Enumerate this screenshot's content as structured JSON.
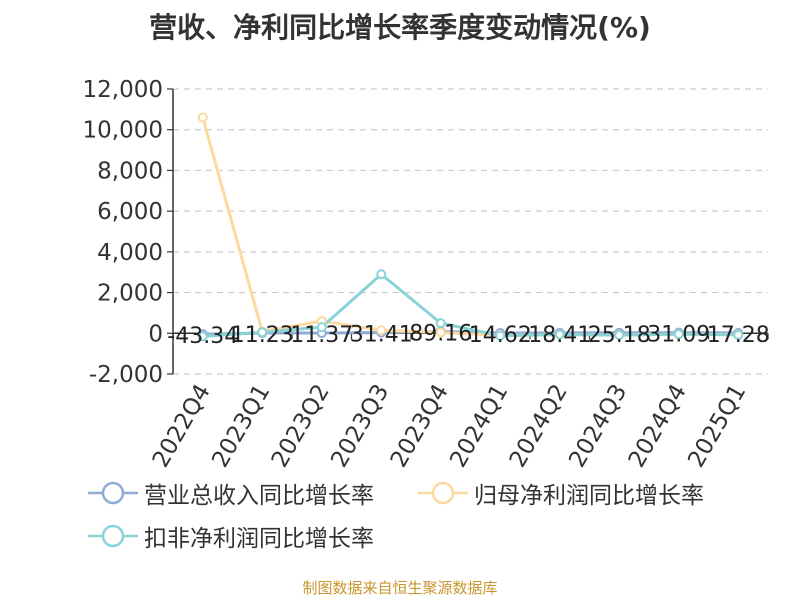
{
  "chart_data": {
    "type": "line",
    "title": "营收、净利同比增长率季度变动情况(%)",
    "categories": [
      "2022Q4",
      "2023Q1",
      "2023Q2",
      "2023Q3",
      "2023Q4",
      "2024Q1",
      "2024Q2",
      "2024Q3",
      "2024Q4",
      "2025Q1"
    ],
    "ylim": [
      -2000,
      12000
    ],
    "yticks": [
      "12,000",
      "10,000",
      "8,000",
      "6,000",
      "4,000",
      "2,000",
      "0",
      "-2,000"
    ],
    "grid": true,
    "legend_position": "bottom",
    "series": [
      {
        "name": "营业总收入同比增长率",
        "color": "#91acd4",
        "values": [
          -43.34,
          11.23,
          11.37,
          31.41,
          89.16,
          14.62,
          18.41,
          25.18,
          31.09,
          17.28
        ],
        "labels": [
          "-43.34",
          "11.23",
          "11.37",
          "31.41",
          "89.16",
          "14.62",
          "18.41",
          "25.18",
          "31.09",
          "17.28"
        ]
      },
      {
        "name": "归母净利润同比增长率",
        "color": "#fcd9a0",
        "values": [
          10600,
          80,
          600,
          150,
          40,
          -100,
          -70,
          -80,
          -50,
          -60
        ],
        "labels": []
      },
      {
        "name": "扣非净利润同比增长率",
        "color": "#89d3d6",
        "values": [
          -150,
          50,
          300,
          2900,
          500,
          -120,
          -60,
          -90,
          -40,
          -80
        ],
        "labels": []
      }
    ]
  },
  "footer": {
    "source": "制图数据来自恒生聚源数据库",
    "source_color": "#c8962e"
  }
}
